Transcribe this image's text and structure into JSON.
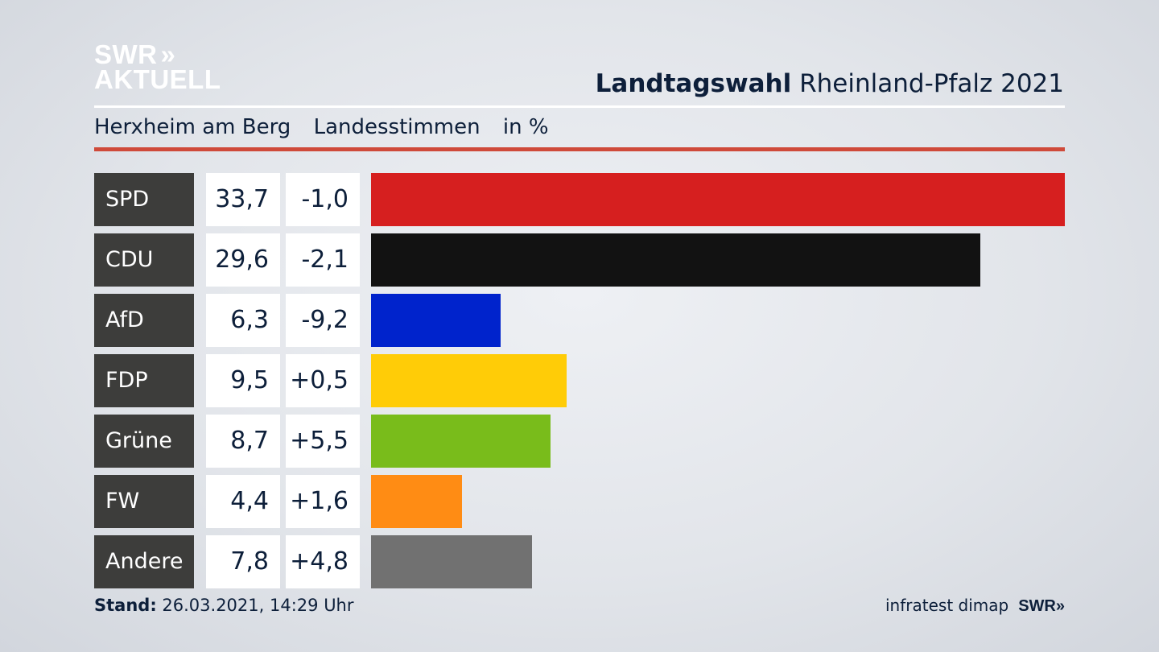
{
  "brand": {
    "line1": "SWR",
    "chevrons": "»",
    "line2": "AKTUELL"
  },
  "header": {
    "title_bold": "Landtagswahl",
    "title_rest": "Rheinland-Pfalz 2021"
  },
  "subtitle": {
    "place": "Herxheim am Berg",
    "type": "Landesstimmen",
    "unit": "in %"
  },
  "chart_data": {
    "type": "bar",
    "orientation": "horizontal",
    "categories": [
      "SPD",
      "CDU",
      "AfD",
      "FDP",
      "Grüne",
      "FW",
      "Andere"
    ],
    "values": [
      33.7,
      29.6,
      6.3,
      9.5,
      8.7,
      4.4,
      7.8
    ],
    "value_labels": [
      "33,7",
      "29,6",
      "6,3",
      "9,5",
      "8,7",
      "4,4",
      "7,8"
    ],
    "changes": [
      -1.0,
      -2.1,
      -9.2,
      0.5,
      5.5,
      1.6,
      4.8
    ],
    "change_labels": [
      "-1,0",
      "-2,1",
      "-9,2",
      "+0,5",
      "+5,5",
      "+1,6",
      "+4,8"
    ],
    "colors": [
      "#d61f1f",
      "#121212",
      "#0023cc",
      "#ffcc07",
      "#79bc1b",
      "#ff8c14",
      "#717171"
    ],
    "xlim": [
      0,
      33.7
    ],
    "grid": false
  },
  "footer": {
    "stand_label": "Stand:",
    "stand_value": "26.03.2021, 14:29 Uhr",
    "source": "infratest dimap",
    "brand": "SWR»"
  }
}
